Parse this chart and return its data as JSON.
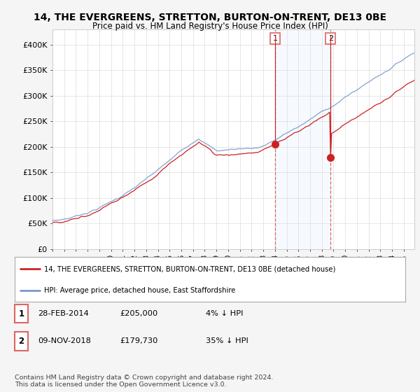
{
  "title": "14, THE EVERGREENS, STRETTON, BURTON-ON-TRENT, DE13 0BE",
  "subtitle": "Price paid vs. HM Land Registry's House Price Index (HPI)",
  "yticks": [
    0,
    50000,
    100000,
    150000,
    200000,
    250000,
    300000,
    350000,
    400000
  ],
  "ytick_labels": [
    "£0",
    "£50K",
    "£100K",
    "£150K",
    "£200K",
    "£250K",
    "£300K",
    "£350K",
    "£400K"
  ],
  "ylim": [
    0,
    430000
  ],
  "hpi_color": "#7799cc",
  "price_color": "#cc2222",
  "marker_vline_color": "#dd6666",
  "span_color": "#ddeeff",
  "plot_bg": "#ffffff",
  "fig_bg": "#f5f5f5",
  "marker1_price": 205000,
  "marker1_label": "1",
  "marker1_date_str": "28-FEB-2014",
  "marker2_price": 179730,
  "marker2_label": "2",
  "marker2_date_str": "09-NOV-2018",
  "legend_line1": "14, THE EVERGREENS, STRETTON, BURTON-ON-TRENT, DE13 0BE (detached house)",
  "legend_line2": "HPI: Average price, detached house, East Staffordshire",
  "footnote": "Contains HM Land Registry data © Crown copyright and database right 2024.\nThis data is licensed under the Open Government Licence v3.0.",
  "table_row1": [
    "1",
    "28-FEB-2014",
    "£205,000",
    "4% ↓ HPI"
  ],
  "table_row2": [
    "2",
    "09-NOV-2018",
    "£179,730",
    "35% ↓ HPI"
  ]
}
